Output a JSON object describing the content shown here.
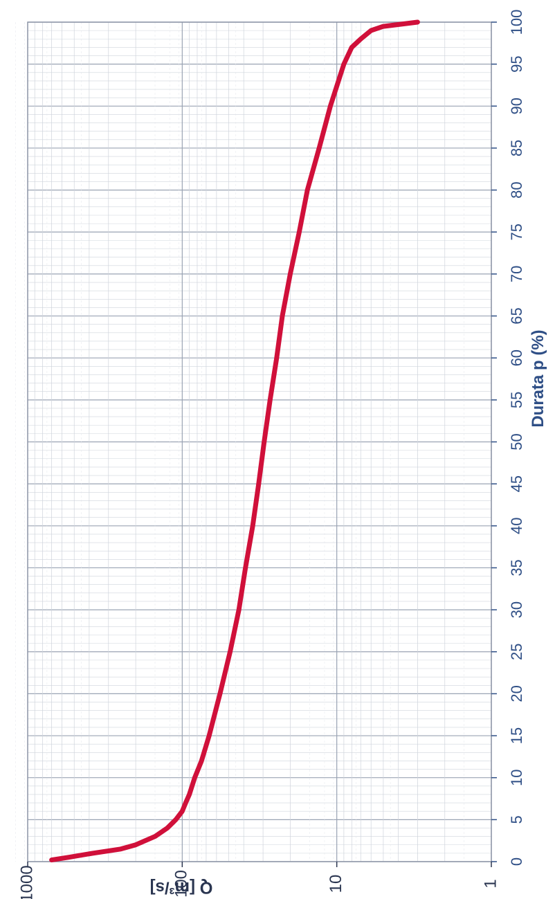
{
  "chart_data": {
    "type": "line",
    "xlabel": "Durata p (%)",
    "ylabel": "Q [m³/s]",
    "x_ticks": [
      "0",
      "5",
      "10",
      "15",
      "20",
      "25",
      "30",
      "35",
      "40",
      "45",
      "50",
      "55",
      "60",
      "65",
      "70",
      "75",
      "80",
      "85",
      "90",
      "95",
      "100"
    ],
    "y_ticks": [
      "1",
      "10",
      "100",
      "1000"
    ],
    "xlim": [
      0,
      100
    ],
    "ylim": [
      1,
      1000
    ],
    "y_scale": "log",
    "grid": true,
    "orientation": "rotated-90-clockwise",
    "series": [
      {
        "color": "#d0103a",
        "x": [
          0.2,
          0.5,
          1,
          1.5,
          2,
          3,
          4,
          5,
          6,
          7,
          8,
          10,
          12,
          15,
          20,
          25,
          30,
          35,
          40,
          45,
          50,
          55,
          60,
          65,
          70,
          75,
          80,
          85,
          90,
          95,
          97,
          98,
          99,
          99.5,
          100
        ],
        "y": [
          700,
          550,
          380,
          250,
          200,
          150,
          125,
          110,
          100,
          95,
          90,
          83,
          75,
          67,
          57,
          49,
          43,
          39,
          35,
          32,
          29.5,
          27,
          24.5,
          22.5,
          20,
          17.5,
          15.5,
          13,
          11,
          9,
          8,
          7,
          6,
          5,
          3
        ]
      }
    ]
  }
}
